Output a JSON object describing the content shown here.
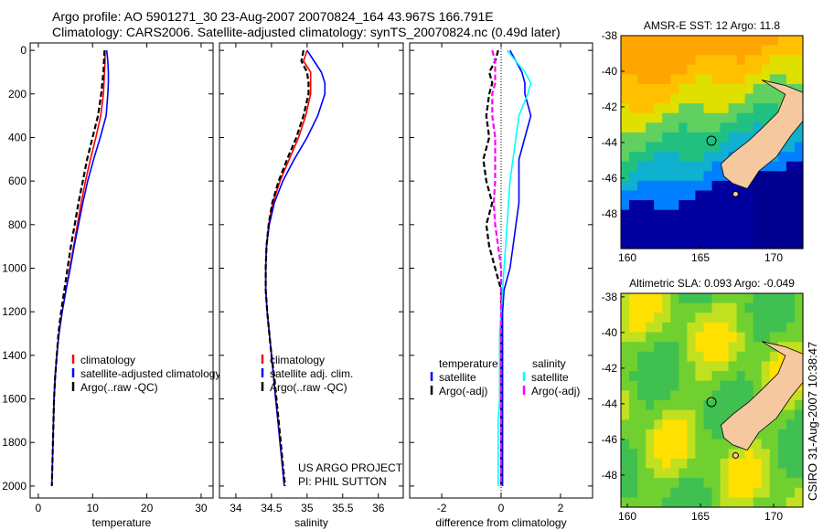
{
  "title_line1": "Argo profile: AO 5901271_30 23-Aug-2007 20070824_164 43.967S 166.791E",
  "title_line2": "Climatology: CARS2006. Satellite-adjusted climatology: synTS_20070824.nc (0.49d later)",
  "side_stamp": "CSIRO 31-Aug-2007 10:38:47",
  "project_line1": "US ARGO PROJECT",
  "project_line2": "PI: PHIL SUTTON",
  "chart_data": [
    {
      "type": "line",
      "xlabel": "temperature",
      "xlim": [
        -1.5,
        32.2
      ],
      "ylim": [
        2055,
        -34
      ],
      "xticks": [
        0,
        10,
        20,
        30
      ],
      "yticks": [
        0,
        200,
        400,
        600,
        800,
        1000,
        1200,
        1400,
        1600,
        1800,
        2000
      ],
      "depth": [
        0,
        50,
        100,
        150,
        200,
        300,
        400,
        500,
        600,
        700,
        800,
        900,
        1000,
        1100,
        1200,
        1300,
        1400,
        1500,
        1600,
        1700,
        1800,
        1900,
        2000
      ],
      "legend": [
        "climatology",
        "satellite-adjusted climatology",
        "Argo(..raw -QC)"
      ],
      "series": [
        {
          "name": "climatology",
          "color": "#ff0000",
          "dash": false,
          "values": [
            12.3,
            12.3,
            12.2,
            12.1,
            12.0,
            11.5,
            10.6,
            9.6,
            8.7,
            7.9,
            7.2,
            6.5,
            5.8,
            5.1,
            4.4,
            3.8,
            3.4,
            3.1,
            2.9,
            2.8,
            null,
            null,
            null
          ]
        },
        {
          "name": "satellite-adjusted climatology",
          "color": "#0000ff",
          "dash": false,
          "values": [
            12.6,
            12.8,
            12.9,
            12.9,
            12.8,
            12.5,
            11.4,
            10.2,
            9.1,
            8.2,
            7.4,
            6.6,
            5.9,
            5.1,
            4.4,
            3.8,
            3.4,
            3.1,
            2.9,
            2.8,
            2.7,
            2.6,
            2.5
          ]
        },
        {
          "name": "Argo(..raw -QC)",
          "color": "#000000",
          "dash": true,
          "values": [
            12.2,
            12.1,
            12.0,
            11.8,
            11.6,
            11.0,
            10.0,
            9.0,
            8.2,
            7.4,
            6.7,
            6.0,
            5.4,
            4.8,
            4.2,
            3.7,
            3.4,
            3.1,
            2.9,
            2.8,
            2.7,
            2.6,
            2.5
          ]
        }
      ]
    },
    {
      "type": "line",
      "xlabel": "salinity",
      "xlim": [
        33.77,
        36.35
      ],
      "ylim": [
        2055,
        -34
      ],
      "xticks": [
        34,
        34.5,
        35,
        35.5,
        36
      ],
      "depth": [
        0,
        50,
        100,
        150,
        200,
        300,
        400,
        500,
        600,
        700,
        800,
        900,
        1000,
        1100,
        1200,
        1300,
        1400,
        1500,
        1600,
        1700,
        1800,
        1900,
        2000
      ],
      "legend": [
        "climatology",
        "satellite adj. clim.",
        "Argo(..raw -QC)"
      ],
      "series": [
        {
          "name": "climatology",
          "color": "#ff0000",
          "dash": false,
          "values": [
            35.0,
            34.95,
            35.05,
            35.05,
            35.05,
            34.98,
            34.88,
            34.75,
            34.62,
            34.52,
            34.46,
            34.43,
            34.42,
            34.42,
            34.44,
            34.47,
            34.5,
            34.53,
            34.56,
            34.59,
            34.62,
            34.65,
            34.68
          ]
        },
        {
          "name": "satellite adj. clim.",
          "color": "#0000ff",
          "dash": false,
          "values": [
            35.0,
            35.1,
            35.2,
            35.25,
            35.25,
            35.15,
            35.0,
            34.82,
            34.66,
            34.54,
            34.47,
            34.43,
            34.42,
            34.42,
            34.44,
            34.47,
            34.5,
            34.53,
            34.56,
            34.59,
            34.62,
            34.65,
            34.68
          ]
        },
        {
          "name": "Argo(..raw -QC)",
          "color": "#000000",
          "dash": true,
          "values": [
            34.95,
            34.92,
            35.0,
            35.02,
            35.02,
            34.95,
            34.85,
            34.72,
            34.6,
            34.51,
            34.46,
            34.43,
            34.42,
            34.42,
            34.44,
            34.47,
            34.5,
            34.54,
            34.57,
            34.6,
            34.63,
            34.66,
            34.69
          ]
        }
      ]
    },
    {
      "type": "line",
      "xlabel": "difference from climatology",
      "xlim": [
        -3.08,
        3.08
      ],
      "ylim": [
        2055,
        -34
      ],
      "xticks": [
        -2,
        0,
        2
      ],
      "depth": [
        0,
        50,
        100,
        150,
        200,
        300,
        400,
        500,
        600,
        700,
        800,
        900,
        1000,
        1100,
        1200,
        1300,
        1400,
        1500,
        1600,
        1700,
        1800,
        1900,
        2000
      ],
      "legend_headers": [
        "temperature",
        "salinity"
      ],
      "legend": [
        "satellite",
        "Argo(-adj)",
        "satellite",
        "Argo(-adj)"
      ],
      "series": [
        {
          "name": "temperature satellite",
          "color": "#0000ff",
          "dash": false,
          "values": [
            0.3,
            0.5,
            0.7,
            0.8,
            0.8,
            1.0,
            0.8,
            0.6,
            0.6,
            0.6,
            0.5,
            0.4,
            0.3,
            0.1,
            0.05,
            0.05,
            0.05,
            0.05,
            0.05,
            0.05,
            0.05,
            0.05,
            0.05
          ]
        },
        {
          "name": "temperature Argo(-adj)",
          "color": "#000000",
          "dash": true,
          "values": [
            -0.1,
            -0.2,
            -0.4,
            -0.3,
            -0.4,
            -0.5,
            -0.4,
            -0.6,
            -0.5,
            -0.3,
            -0.5,
            -0.4,
            -0.2,
            0,
            0,
            0,
            0,
            0,
            0,
            0,
            0,
            0,
            0
          ]
        },
        {
          "name": "salinity satellite",
          "color": "#00ffff",
          "dash": false,
          "values": [
            0.2,
            0.5,
            0.8,
            1.0,
            0.9,
            0.6,
            0.5,
            0.4,
            0.3,
            0.25,
            0.2,
            0.15,
            0.1,
            0.05,
            0,
            -0.05,
            -0.05,
            -0.05,
            -0.05,
            -0.1,
            -0.1,
            -0.1,
            -0.1
          ]
        },
        {
          "name": "salinity Argo(-adj)",
          "color": "#ff00ff",
          "dash": true,
          "values": [
            -0.3,
            -0.2,
            -0.2,
            -0.2,
            -0.3,
            -0.3,
            -0.2,
            -0.2,
            -0.2,
            -0.25,
            -0.2,
            -0.1,
            0,
            0,
            0,
            0,
            0,
            0,
            0,
            0,
            0,
            0,
            0
          ]
        }
      ]
    },
    {
      "type": "heatmap",
      "title": "AMSR-E SST: 12 Argo: 11.8",
      "xlim": [
        159.56,
        172
      ],
      "ylim": [
        -38,
        -49.96
      ],
      "xticks": [
        160,
        165,
        170
      ],
      "yticks": [
        -38,
        -40,
        -42,
        -44,
        -46,
        -48
      ],
      "marker": [
        165.75,
        -43.9
      ]
    },
    {
      "type": "heatmap",
      "title": "Altimetric SLA: 0.093 Argo: -0.049",
      "xlim": [
        159.56,
        172
      ],
      "ylim": [
        -37.8,
        -49.8
      ],
      "xticks": [
        160,
        165,
        170
      ],
      "yticks": [
        -38,
        -40,
        -42,
        -44,
        -46,
        -48
      ],
      "marker": [
        165.75,
        -43.9
      ]
    }
  ]
}
